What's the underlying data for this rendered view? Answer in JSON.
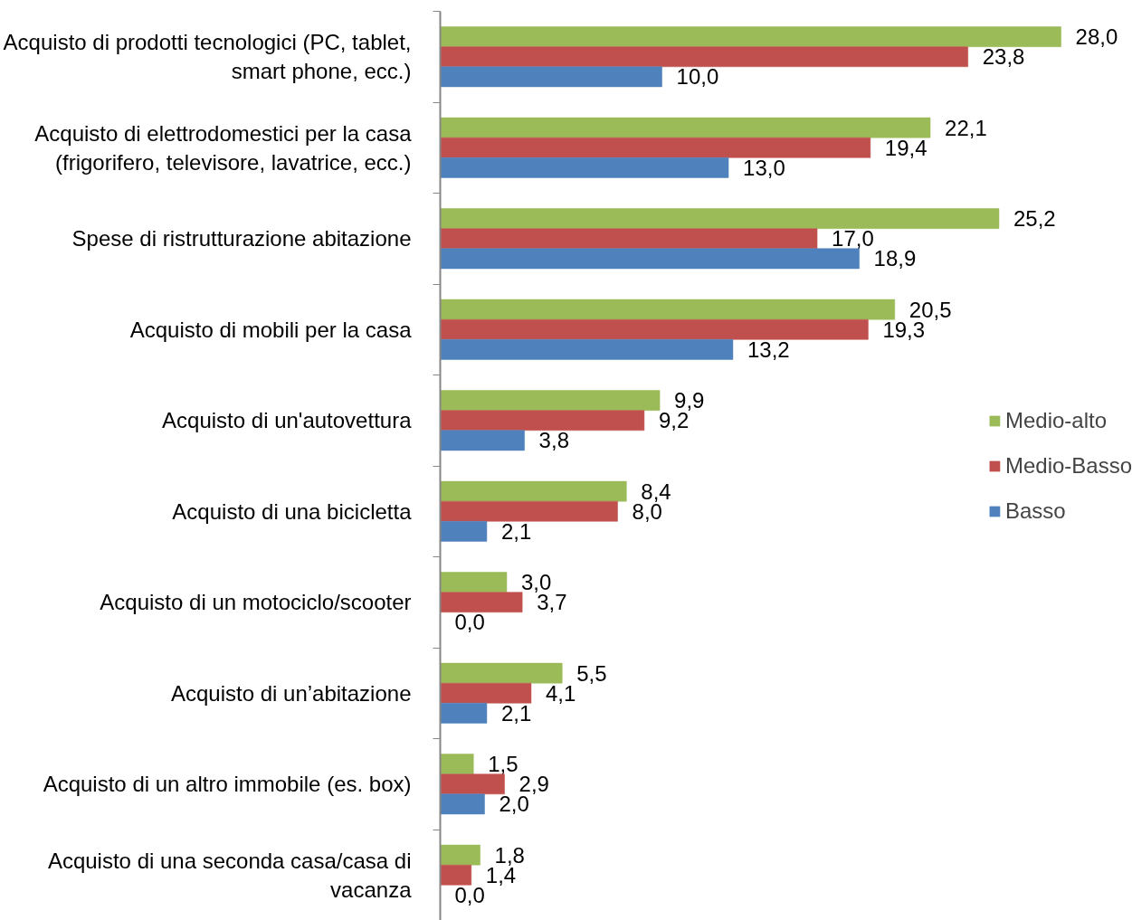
{
  "chart_data": {
    "type": "bar",
    "orientation": "horizontal",
    "categories": [
      "Acquisto di prodotti tecnologici (PC, tablet,\nsmart phone, ecc.)",
      "Acquisto di elettrodomestici per la casa\n(frigorifero, televisore, lavatrice, ecc.)",
      "Spese di ristrutturazione abitazione",
      "Acquisto di mobili per la casa",
      "Acquisto di un'autovettura",
      "Acquisto di una bicicletta",
      "Acquisto di un motociclo/scooter",
      "Acquisto di un’abitazione",
      "Acquisto di un altro immobile (es. box)",
      "Acquisto di una seconda casa/casa di\nvacanza"
    ],
    "series": [
      {
        "name": "Medio-alto",
        "color": "#9bbb59",
        "values": [
          28.0,
          22.1,
          25.2,
          20.5,
          9.9,
          8.4,
          3.0,
          5.5,
          1.5,
          1.8
        ],
        "value_labels": [
          "28,0",
          "22,1",
          "25,2",
          "20,5",
          "9,9",
          "8,4",
          "3,0",
          "5,5",
          "1,5",
          "1,8"
        ]
      },
      {
        "name": "Medio-Basso",
        "color": "#c0504d",
        "values": [
          23.8,
          19.4,
          17.0,
          19.3,
          9.2,
          8.0,
          3.7,
          4.1,
          2.9,
          1.4
        ],
        "value_labels": [
          "23,8",
          "19,4",
          "17,0",
          "19,3",
          "9,2",
          "8,0",
          "3,7",
          "4,1",
          "2,9",
          "1,4"
        ]
      },
      {
        "name": "Basso",
        "color": "#4f81bd",
        "values": [
          10.0,
          13.0,
          18.9,
          13.2,
          3.8,
          2.1,
          0.0,
          2.1,
          2.0,
          0.0
        ],
        "value_labels": [
          "10,0",
          "13,0",
          "18,9",
          "13,2",
          "3,8",
          "2,1",
          "0,0",
          "2,1",
          "2,0",
          "0,0"
        ]
      }
    ],
    "tick_labels": "y",
    "legend": "right"
  }
}
